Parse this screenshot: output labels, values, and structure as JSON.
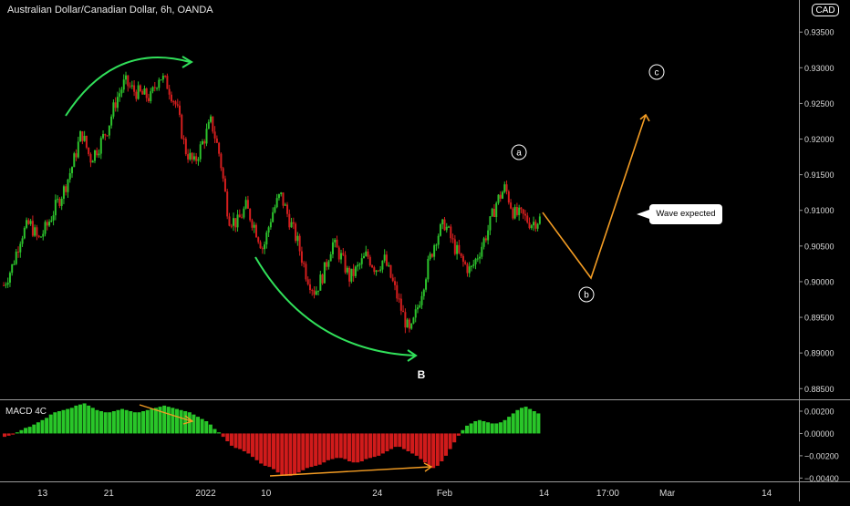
{
  "header": {
    "symbol_title": "Australian Dollar/Canadian Dollar, 6h, OANDA",
    "currency_label": "CAD"
  },
  "indicator": {
    "label": "MACD 4C"
  },
  "annotation": {
    "note": "Wave expected"
  },
  "chart_data": [
    {
      "type": "candlestick",
      "title": "Australian Dollar/Canadian Dollar, 6h, OANDA",
      "ylim": [
        0.8835,
        0.9395
      ],
      "y_ticks": [
        "0.93500",
        "0.93000",
        "0.92500",
        "0.92000",
        "0.91500",
        "0.91000",
        "0.90500",
        "0.90000",
        "0.89500",
        "0.89000",
        "0.88500"
      ],
      "x_ticks": [
        "13",
        "21",
        "2022",
        "10",
        "24",
        "Feb",
        "14",
        "17:00",
        "Mar",
        "14"
      ],
      "grid": false,
      "legend": "none",
      "wave_labels": [
        "a",
        "B",
        "b",
        "c"
      ],
      "colors": {
        "up": "#2cc22c",
        "down": "#d41e1e",
        "projection": "#f39c23",
        "arc": "#31e05a"
      },
      "close_path": [
        0.8995,
        0.9022,
        0.9065,
        0.9082,
        0.9058,
        0.9078,
        0.9105,
        0.913,
        0.9165,
        0.921,
        0.9172,
        0.919,
        0.9215,
        0.9255,
        0.928,
        0.9268,
        0.9262,
        0.9258,
        0.929,
        0.9275,
        0.9245,
        0.9185,
        0.9165,
        0.9195,
        0.9225,
        0.9175,
        0.909,
        0.9082,
        0.9105,
        0.9078,
        0.9045,
        0.9095,
        0.9122,
        0.9088,
        0.9055,
        0.901,
        0.8985,
        0.9012,
        0.9055,
        0.9035,
        0.9005,
        0.902,
        0.9038,
        0.9018,
        0.9032,
        0.8998,
        0.896,
        0.8925,
        0.897,
        0.902,
        0.9062,
        0.9082,
        0.9052,
        0.9028,
        0.9015,
        0.9042,
        0.9072,
        0.9112,
        0.9132,
        0.9095,
        0.9092,
        0.9082,
        0.9088
      ],
      "projection_path": [
        0.9097,
        0.9005,
        0.9234
      ]
    },
    {
      "type": "bar",
      "title": "MACD 4C",
      "ylim": [
        -0.0043,
        0.0029
      ],
      "y_ticks": [
        "0.00200",
        "0.00000",
        "-0.00200",
        "-0.00400"
      ],
      "colors": {
        "up": "#29c629",
        "down": "#d01b1b"
      },
      "values": [
        -0.0003,
        -0.0002,
        -0.0001,
        0.0001,
        0.0003,
        0.0005,
        0.0006,
        0.0008,
        0.001,
        0.0012,
        0.0014,
        0.0017,
        0.0019,
        0.002,
        0.0021,
        0.0022,
        0.0023,
        0.0025,
        0.0026,
        0.0027,
        0.0025,
        0.0023,
        0.0021,
        0.002,
        0.0019,
        0.0019,
        0.002,
        0.0021,
        0.0022,
        0.0021,
        0.002,
        0.0019,
        0.0019,
        0.002,
        0.0021,
        0.0022,
        0.0023,
        0.0024,
        0.0025,
        0.0024,
        0.0023,
        0.0022,
        0.0021,
        0.002,
        0.0019,
        0.0017,
        0.0015,
        0.0013,
        0.0011,
        0.0008,
        0.0004,
        0.0001,
        -0.0003,
        -0.0007,
        -0.0011,
        -0.0013,
        -0.0014,
        -0.0016,
        -0.0018,
        -0.0021,
        -0.0024,
        -0.0027,
        -0.0029,
        -0.003,
        -0.0032,
        -0.0035,
        -0.0037,
        -0.0038,
        -0.0038,
        -0.0037,
        -0.0035,
        -0.0033,
        -0.0031,
        -0.003,
        -0.0029,
        -0.0028,
        -0.0026,
        -0.0024,
        -0.0023,
        -0.0022,
        -0.0022,
        -0.0023,
        -0.0025,
        -0.0026,
        -0.0026,
        -0.0025,
        -0.0023,
        -0.0022,
        -0.0021,
        -0.002,
        -0.0018,
        -0.0016,
        -0.0014,
        -0.0012,
        -0.0012,
        -0.0014,
        -0.0016,
        -0.0018,
        -0.002,
        -0.0023,
        -0.0026,
        -0.0029,
        -0.0031,
        -0.0029,
        -0.0025,
        -0.002,
        -0.0014,
        -0.0008,
        -0.0002,
        0.0003,
        0.0007,
        0.0009,
        0.0011,
        0.0012,
        0.0011,
        0.001,
        0.0009,
        0.0009,
        0.001,
        0.0012,
        0.0015,
        0.0018,
        0.0021,
        0.0023,
        0.0024,
        0.0022,
        0.002,
        0.0018
      ]
    }
  ]
}
